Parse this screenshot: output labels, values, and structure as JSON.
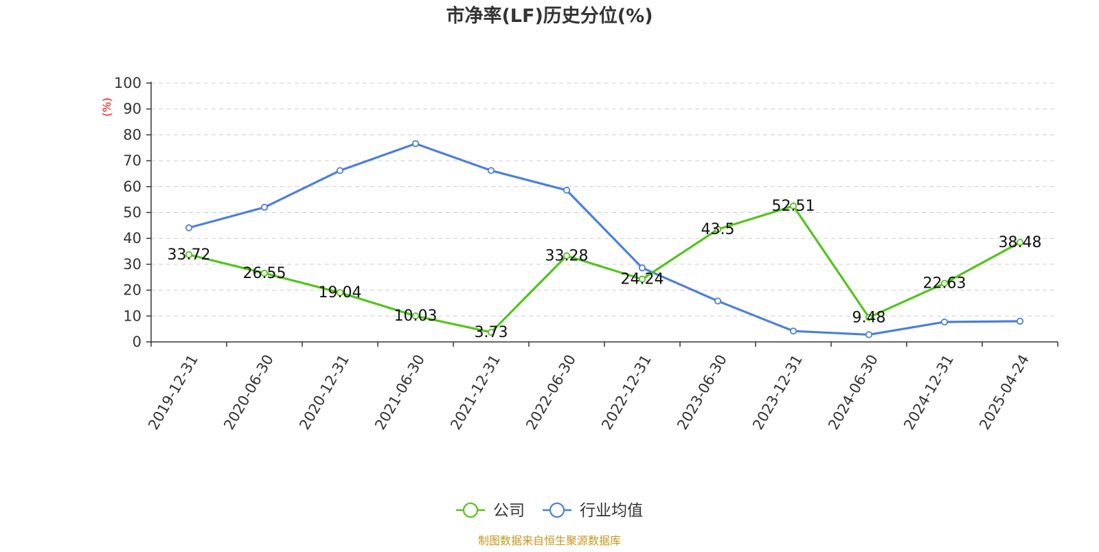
{
  "chart_data": {
    "type": "line",
    "title": "市净率(LF)历史分位(%)",
    "ylabel": "(%)",
    "xlabel": "",
    "ylim": [
      0,
      100
    ],
    "yticks": [
      0,
      10,
      20,
      30,
      40,
      50,
      60,
      70,
      80,
      90,
      100
    ],
    "grid": true,
    "legend_position": "bottom",
    "categories": [
      "2019-12-31",
      "2020-06-30",
      "2020-12-31",
      "2021-06-30",
      "2021-12-31",
      "2022-06-30",
      "2022-12-31",
      "2023-06-30",
      "2023-12-31",
      "2024-06-30",
      "2024-12-31",
      "2025-04-24"
    ],
    "series": [
      {
        "name": "公司",
        "color": "#52c41a",
        "show_labels": true,
        "values": [
          33.72,
          26.55,
          19.04,
          10.03,
          3.73,
          33.28,
          24.24,
          43.5,
          52.51,
          9.48,
          22.63,
          38.48
        ]
      },
      {
        "name": "行业均值",
        "color": "#4a7fdc",
        "show_labels": false,
        "values": [
          44.1,
          52.0,
          66.2,
          76.6,
          66.2,
          58.6,
          28.6,
          15.8,
          4.2,
          2.8,
          7.7,
          8.0
        ]
      }
    ],
    "source_note": "制图数据来自恒生聚源数据库",
    "colors": {
      "title": "#333333",
      "axis": "#333333",
      "grid": "#cccccc",
      "ylabel": "#ff0000",
      "source": "#c8961e"
    }
  }
}
